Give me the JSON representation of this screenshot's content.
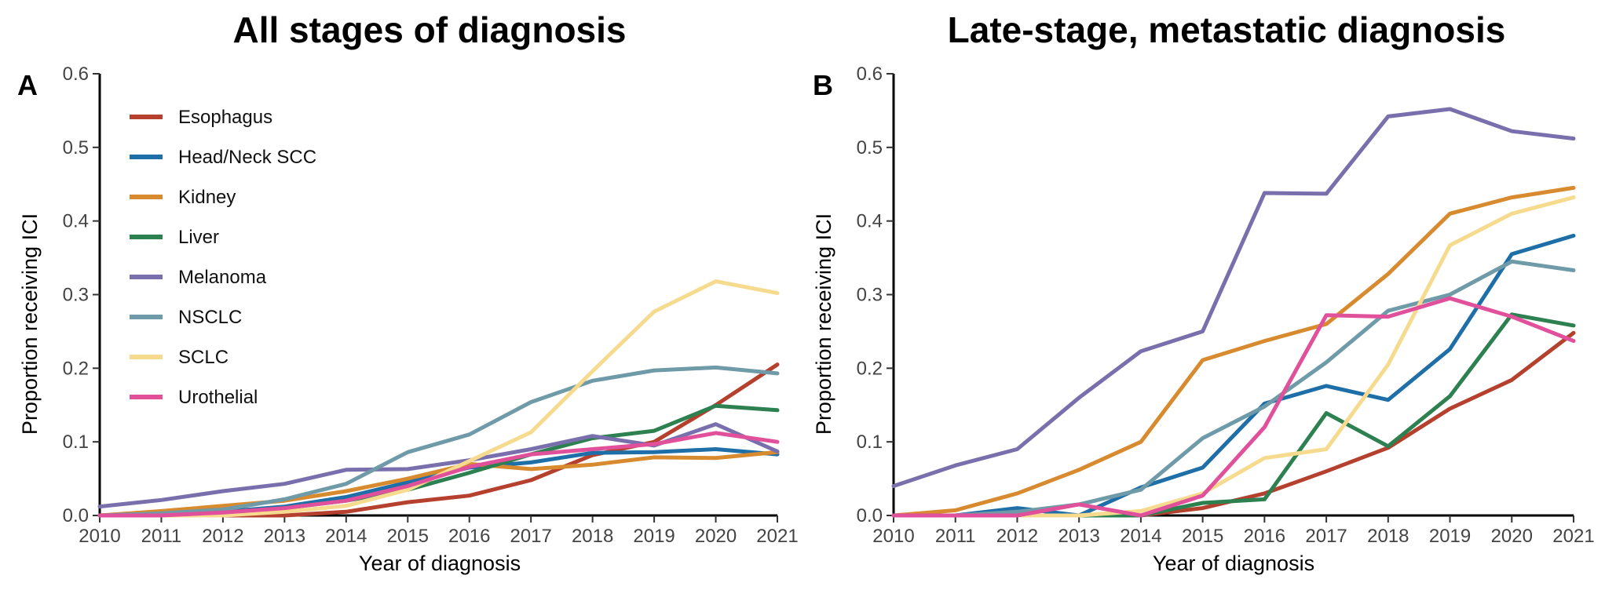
{
  "chart_data": [
    {
      "type": "line",
      "panel_label": "A",
      "title": "All stages of diagnosis",
      "xlabel": "Year of diagnosis",
      "ylabel": "Proportion receiving ICI",
      "x": [
        2010,
        2011,
        2012,
        2013,
        2014,
        2015,
        2016,
        2017,
        2018,
        2019,
        2020,
        2021
      ],
      "xlim": [
        2010,
        2021
      ],
      "ylim": [
        0,
        0.6
      ],
      "yticks": [
        "0.0",
        "0.1",
        "0.2",
        "0.3",
        "0.4",
        "0.5",
        "0.6"
      ],
      "grid": false,
      "legend": "top-left",
      "series": [
        {
          "name": "Esophagus",
          "color": "#B5402D",
          "values": [
            0.0,
            0.0,
            0.0,
            0.0,
            0.005,
            0.018,
            0.027,
            0.048,
            0.082,
            0.1,
            0.15,
            0.205
          ]
        },
        {
          "name": "Head/Neck SCC",
          "color": "#1E6FA8",
          "values": [
            0.0,
            0.002,
            0.005,
            0.012,
            0.025,
            0.045,
            0.065,
            0.072,
            0.085,
            0.086,
            0.09,
            0.083
          ]
        },
        {
          "name": "Kidney",
          "color": "#D88A2F",
          "values": [
            0.0,
            0.006,
            0.013,
            0.02,
            0.033,
            0.05,
            0.07,
            0.063,
            0.069,
            0.079,
            0.078,
            0.086
          ]
        },
        {
          "name": "Liver",
          "color": "#2D8050",
          "values": [
            0.0,
            0.0,
            0.003,
            0.01,
            0.02,
            0.035,
            0.058,
            0.083,
            0.105,
            0.115,
            0.149,
            0.143
          ]
        },
        {
          "name": "Melanoma",
          "color": "#7A6FAD",
          "values": [
            0.012,
            0.021,
            0.033,
            0.043,
            0.062,
            0.063,
            0.075,
            0.09,
            0.108,
            0.095,
            0.124,
            0.087
          ]
        },
        {
          "name": "NSCLC",
          "color": "#6F9AA8",
          "values": [
            0.0,
            0.003,
            0.008,
            0.022,
            0.043,
            0.086,
            0.11,
            0.154,
            0.183,
            0.197,
            0.201,
            0.193
          ]
        },
        {
          "name": "SCLC",
          "color": "#F6DB8F",
          "values": [
            0.0,
            0.0,
            0.0,
            0.005,
            0.013,
            0.035,
            0.074,
            0.113,
            0.196,
            0.277,
            0.318,
            0.302
          ]
        },
        {
          "name": "Urothelial",
          "color": "#E0509B",
          "values": [
            0.0,
            0.0,
            0.004,
            0.01,
            0.02,
            0.04,
            0.066,
            0.083,
            0.09,
            0.097,
            0.112,
            0.1
          ]
        }
      ]
    },
    {
      "type": "line",
      "panel_label": "B",
      "title": "Late-stage, metastatic diagnosis",
      "xlabel": "Year of diagnosis",
      "ylabel": "Proportion receiving ICI",
      "x": [
        2010,
        2011,
        2012,
        2013,
        2014,
        2015,
        2016,
        2017,
        2018,
        2019,
        2020,
        2021
      ],
      "xlim": [
        2010,
        2021
      ],
      "ylim": [
        0,
        0.6
      ],
      "yticks": [
        "0.0",
        "0.1",
        "0.2",
        "0.3",
        "0.4",
        "0.5",
        "0.6"
      ],
      "grid": false,
      "series": [
        {
          "name": "Esophagus",
          "color": "#B5402D",
          "values": [
            0.0,
            0.0,
            0.0,
            0.0,
            0.0,
            0.01,
            0.03,
            0.06,
            0.092,
            0.145,
            0.184,
            0.248
          ]
        },
        {
          "name": "Head/Neck SCC",
          "color": "#1E6FA8",
          "values": [
            0.0,
            0.0,
            0.01,
            0.0,
            0.038,
            0.065,
            0.152,
            0.176,
            0.157,
            0.226,
            0.355,
            0.38
          ]
        },
        {
          "name": "Kidney",
          "color": "#D88A2F",
          "values": [
            0.0,
            0.007,
            0.03,
            0.062,
            0.1,
            0.211,
            0.237,
            0.26,
            0.328,
            0.41,
            0.432,
            0.445
          ]
        },
        {
          "name": "Liver",
          "color": "#2D8050",
          "values": [
            0.0,
            0.0,
            0.0,
            0.0,
            0.0,
            0.017,
            0.022,
            0.139,
            0.094,
            0.162,
            0.273,
            0.258
          ]
        },
        {
          "name": "Melanoma",
          "color": "#7A6FAD",
          "values": [
            0.04,
            0.068,
            0.09,
            0.16,
            0.223,
            0.25,
            0.438,
            0.437,
            0.542,
            0.552,
            0.522,
            0.512
          ]
        },
        {
          "name": "NSCLC",
          "color": "#6F9AA8",
          "values": [
            0.0,
            0.0,
            0.005,
            0.015,
            0.035,
            0.105,
            0.148,
            0.208,
            0.278,
            0.3,
            0.345,
            0.333
          ]
        },
        {
          "name": "SCLC",
          "color": "#F6DB8F",
          "values": [
            0.0,
            0.0,
            0.0,
            0.0,
            0.006,
            0.03,
            0.078,
            0.09,
            0.205,
            0.367,
            0.41,
            0.432
          ]
        },
        {
          "name": "Urothelial",
          "color": "#E0509B",
          "values": [
            0.0,
            0.0,
            0.0,
            0.015,
            0.0,
            0.027,
            0.12,
            0.272,
            0.27,
            0.295,
            0.27,
            0.237
          ]
        }
      ]
    }
  ]
}
